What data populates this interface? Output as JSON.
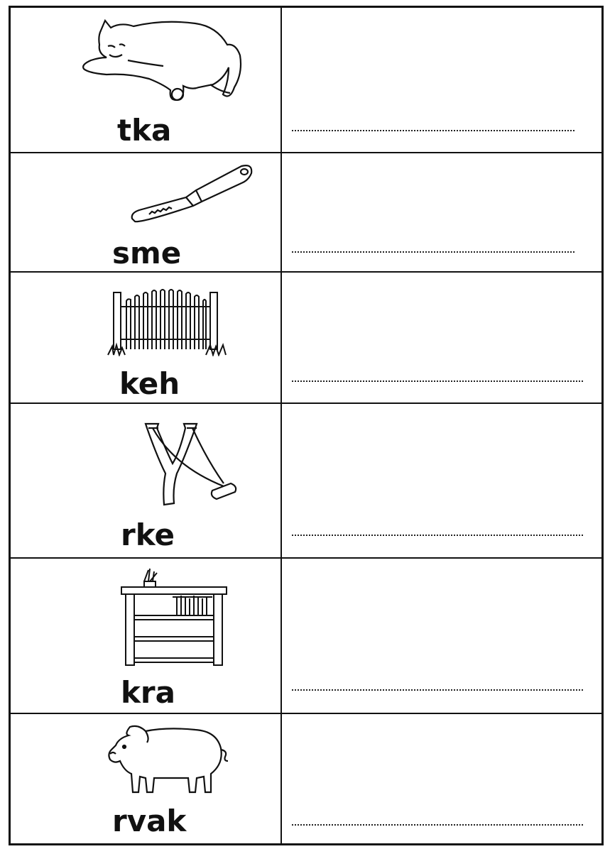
{
  "rows": [
    {
      "word": "tka",
      "picture": "sleeping-cat"
    },
    {
      "word": "sme",
      "picture": "butter-knife"
    },
    {
      "word": "keh",
      "picture": "wooden-gate"
    },
    {
      "word": "rke",
      "picture": "slingshot"
    },
    {
      "word": "kra",
      "picture": "bookshelf"
    },
    {
      "word": "rvak",
      "picture": "pig"
    }
  ]
}
